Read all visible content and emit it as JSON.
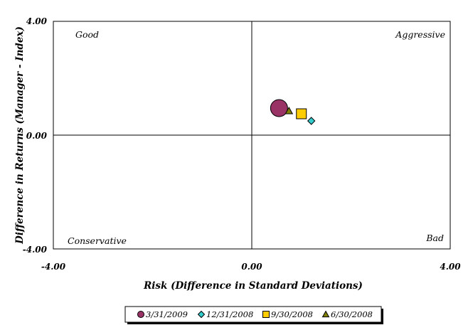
{
  "chart_data": {
    "type": "scatter",
    "title": "",
    "xlabel": "Risk (Difference in Standard Deviations)",
    "ylabel": "Difference in Returns (Manager - Index)",
    "xlim": [
      -4,
      4
    ],
    "ylim": [
      -4,
      4
    ],
    "x_ticks": [
      "-4.00",
      "0.00",
      "4.00"
    ],
    "y_ticks": [
      "4.00",
      "0.00",
      "-4.00"
    ],
    "grid": false,
    "quadrant_labels": {
      "top_left": "Good",
      "top_right": "Aggressive",
      "bottom_left": "Conservative",
      "bottom_right": "Bad"
    },
    "legend_position": "bottom",
    "series": [
      {
        "name": "3/31/2009",
        "marker": "circle",
        "color": "#993366",
        "x": 0.55,
        "y": 0.95,
        "size": "large"
      },
      {
        "name": "12/31/2008",
        "marker": "diamond",
        "color": "#33CCCC",
        "x": 1.2,
        "y": 0.5,
        "size": "small"
      },
      {
        "name": "9/30/2008",
        "marker": "square",
        "color": "#FFCC00",
        "x": 1.0,
        "y": 0.75,
        "size": "medium"
      },
      {
        "name": "6/30/2008",
        "marker": "triangle",
        "color": "#808000",
        "x": 0.75,
        "y": 0.85,
        "size": "small"
      }
    ]
  }
}
